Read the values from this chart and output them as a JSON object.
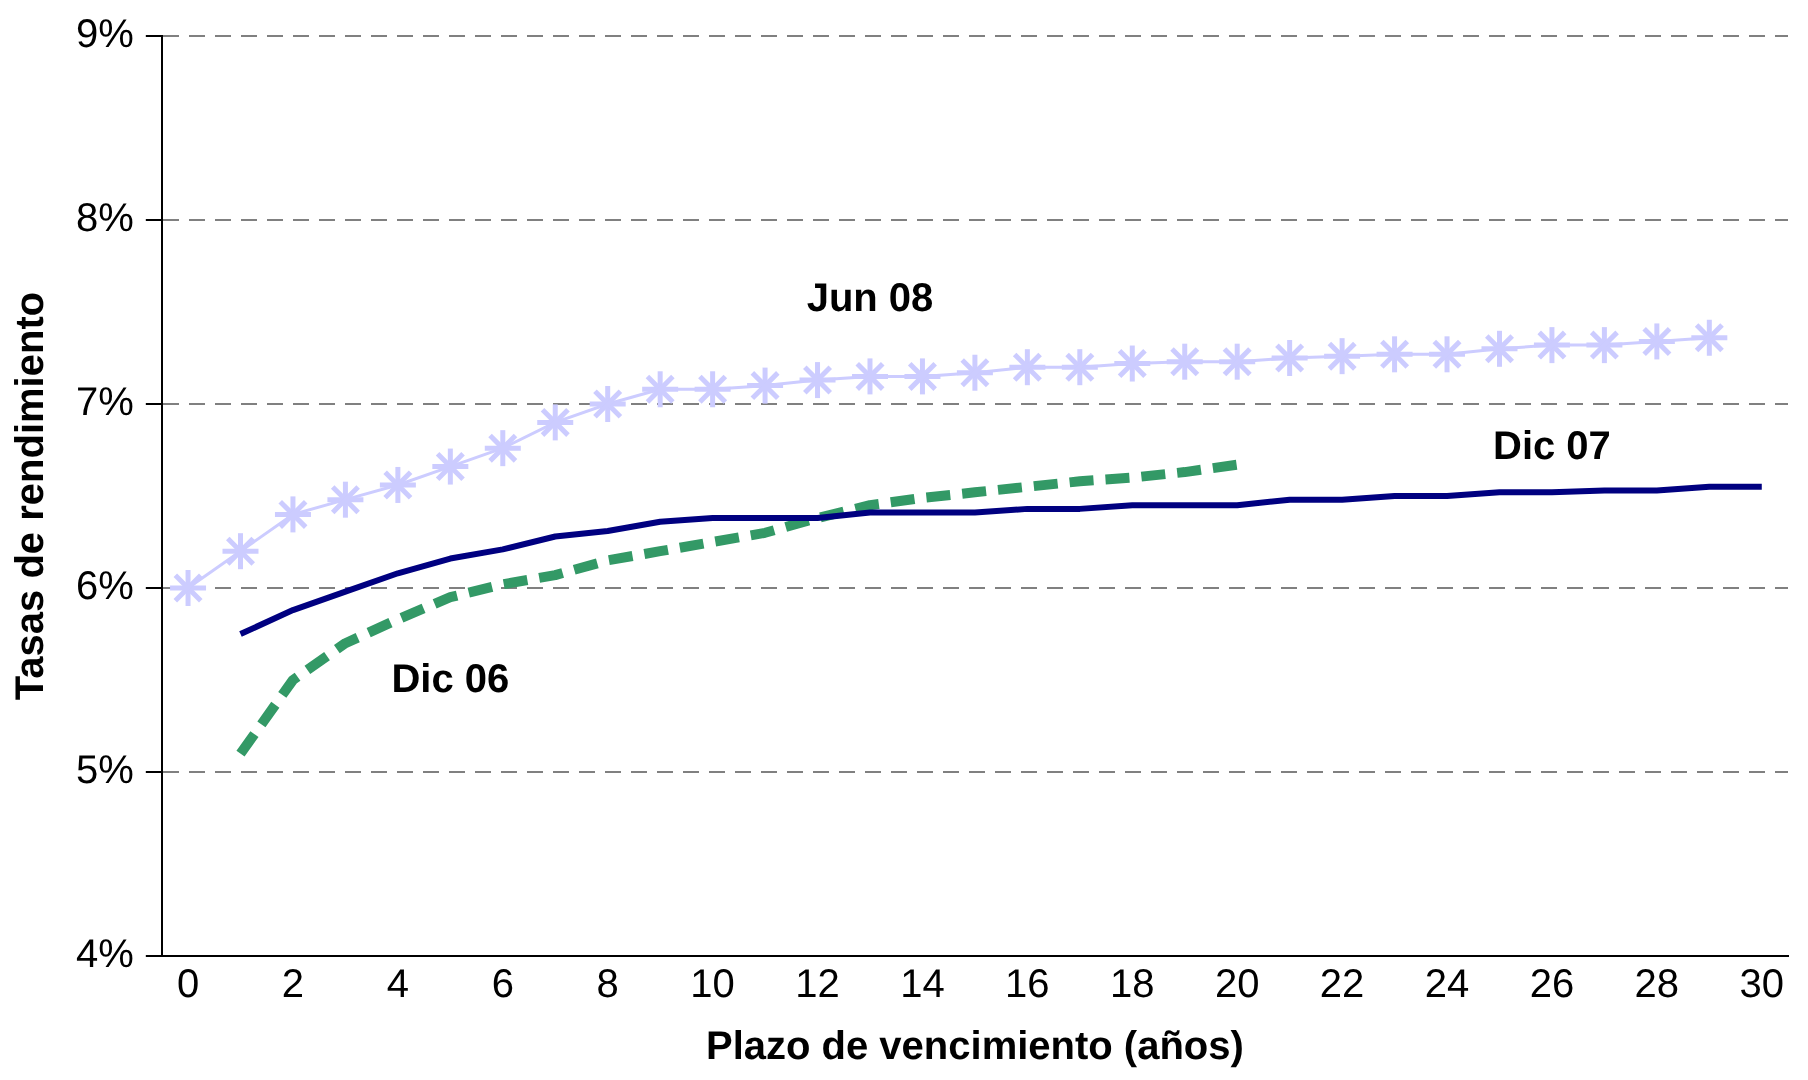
{
  "chart_data": {
    "type": "line",
    "xlabel": "Plazo de vencimiento (años)",
    "ylabel": "Tasas de rendimiento",
    "xlim": [
      -0.5,
      30.5
    ],
    "xticks": [
      0,
      2,
      4,
      6,
      8,
      10,
      12,
      14,
      16,
      18,
      20,
      22,
      24,
      26,
      28,
      30
    ],
    "ylim": [
      4,
      9
    ],
    "yticks": [
      {
        "value": 4,
        "label": "4%"
      },
      {
        "value": 5,
        "label": "5%"
      },
      {
        "value": 6,
        "label": "6%"
      },
      {
        "value": 7,
        "label": "7%"
      },
      {
        "value": 8,
        "label": "8%"
      },
      {
        "value": 9,
        "label": "9%"
      }
    ],
    "grid": "y",
    "legend": false,
    "series": [
      {
        "name": "Jun 08",
        "color": "#ccccff",
        "marker": "cross",
        "line_style": "solid",
        "x": [
          0,
          1,
          2,
          3,
          4,
          5,
          6,
          7,
          8,
          9,
          10,
          11,
          12,
          13,
          14,
          15,
          16,
          17,
          18,
          19,
          20,
          21,
          22,
          23,
          24,
          25,
          26,
          27,
          28,
          29
        ],
        "values": [
          6.0,
          6.2,
          6.4,
          6.48,
          6.56,
          6.66,
          6.76,
          6.9,
          7.0,
          7.08,
          7.08,
          7.1,
          7.13,
          7.15,
          7.15,
          7.17,
          7.2,
          7.2,
          7.22,
          7.23,
          7.23,
          7.25,
          7.26,
          7.27,
          7.27,
          7.3,
          7.32,
          7.32,
          7.34,
          7.36
        ]
      },
      {
        "name": "Dic 07",
        "color": "#000080",
        "marker": "none",
        "line_style": "solid",
        "x": [
          1,
          2,
          3,
          4,
          5,
          6,
          7,
          8,
          9,
          10,
          11,
          12,
          13,
          14,
          15,
          16,
          17,
          18,
          19,
          20,
          21,
          22,
          23,
          24,
          25,
          26,
          27,
          28,
          29,
          30
        ],
        "values": [
          5.75,
          5.88,
          5.98,
          6.08,
          6.16,
          6.21,
          6.28,
          6.31,
          6.36,
          6.38,
          6.38,
          6.38,
          6.41,
          6.41,
          6.41,
          6.43,
          6.43,
          6.45,
          6.45,
          6.45,
          6.48,
          6.48,
          6.5,
          6.5,
          6.52,
          6.52,
          6.53,
          6.53,
          6.55,
          6.55
        ]
      },
      {
        "name": "Dic 06",
        "color": "#339966",
        "marker": "none",
        "line_style": "dashed",
        "x": [
          1,
          2,
          3,
          4,
          5,
          6,
          7,
          8,
          9,
          10,
          11,
          12,
          13,
          14,
          15,
          16,
          17,
          18,
          19,
          20
        ],
        "values": [
          5.1,
          5.5,
          5.7,
          5.83,
          5.95,
          6.02,
          6.07,
          6.15,
          6.2,
          6.25,
          6.3,
          6.38,
          6.45,
          6.49,
          6.52,
          6.55,
          6.58,
          6.6,
          6.63,
          6.67
        ]
      }
    ]
  }
}
